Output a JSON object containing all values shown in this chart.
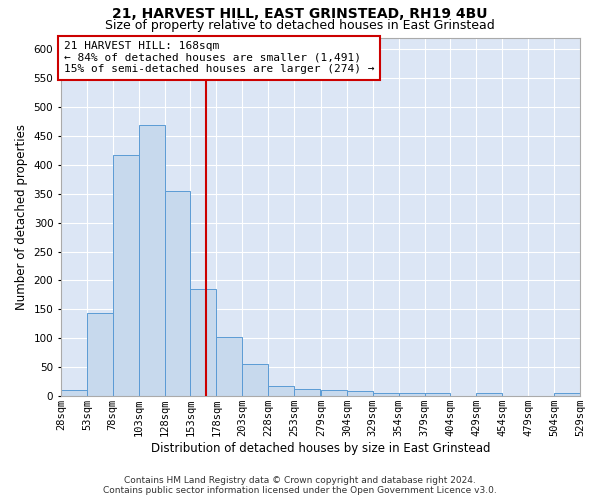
{
  "title": "21, HARVEST HILL, EAST GRINSTEAD, RH19 4BU",
  "subtitle": "Size of property relative to detached houses in East Grinstead",
  "xlabel": "Distribution of detached houses by size in East Grinstead",
  "ylabel": "Number of detached properties",
  "footer_line1": "Contains HM Land Registry data © Crown copyright and database right 2024.",
  "footer_line2": "Contains public sector information licensed under the Open Government Licence v3.0.",
  "annotation_line1": "21 HARVEST HILL: 168sqm",
  "annotation_line2": "← 84% of detached houses are smaller (1,491)",
  "annotation_line3": "15% of semi-detached houses are larger (274) →",
  "bin_edges": [
    28,
    53,
    78,
    103,
    128,
    153,
    178,
    203,
    228,
    253,
    279,
    304,
    329,
    354,
    379,
    404,
    429,
    454,
    479,
    504,
    529
  ],
  "bin_labels": [
    "28sqm",
    "53sqm",
    "78sqm",
    "103sqm",
    "128sqm",
    "153sqm",
    "178sqm",
    "203sqm",
    "228sqm",
    "253sqm",
    "279sqm",
    "304sqm",
    "329sqm",
    "354sqm",
    "379sqm",
    "404sqm",
    "429sqm",
    "454sqm",
    "479sqm",
    "504sqm",
    "529sqm"
  ],
  "bar_heights": [
    10,
    143,
    417,
    468,
    355,
    185,
    103,
    55,
    17,
    13,
    10,
    9,
    5,
    5,
    5,
    0,
    5,
    0,
    0,
    5
  ],
  "bar_color": "#c7d9ed",
  "bar_edge_color": "#5b9bd5",
  "vline_x": 168,
  "vline_color": "#cc0000",
  "ylim": [
    0,
    620
  ],
  "yticks": [
    0,
    50,
    100,
    150,
    200,
    250,
    300,
    350,
    400,
    450,
    500,
    550,
    600
  ],
  "plot_background": "#dce6f5",
  "annotation_box_color": "#ffffff",
  "annotation_box_edge": "#cc0000",
  "title_fontsize": 10,
  "subtitle_fontsize": 9,
  "axis_label_fontsize": 8.5,
  "tick_fontsize": 7.5,
  "annotation_fontsize": 8,
  "footer_fontsize": 6.5
}
